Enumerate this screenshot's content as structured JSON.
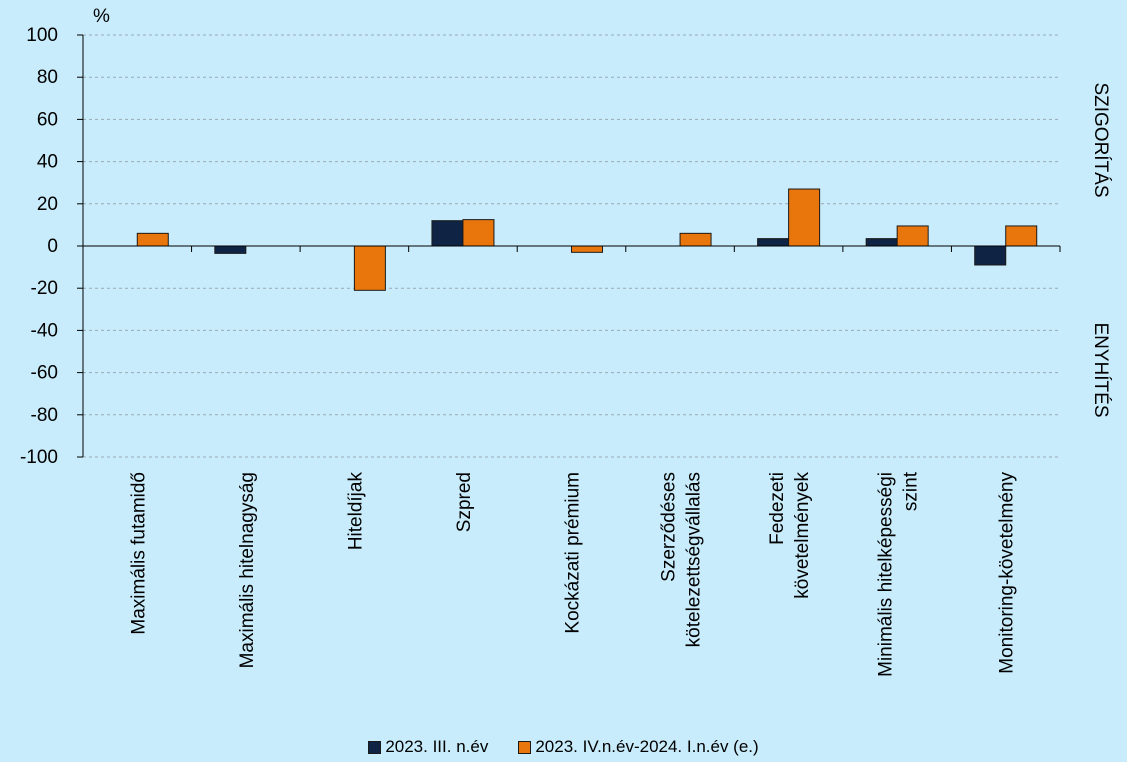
{
  "chart_data": {
    "type": "bar",
    "unit_label": "%",
    "ylim": [
      -100,
      100
    ],
    "ytick_step": 20,
    "grid": "dashed horizontal",
    "right_labels": {
      "top": "SZIGORÍTÁS",
      "bottom": "ENYHÍTÉS"
    },
    "categories": [
      [
        "Maximális futamidő"
      ],
      [
        "Maximális hitelnagyság"
      ],
      [
        "Hiteldíjak"
      ],
      [
        "Szpred"
      ],
      [
        "Kockázati prémium"
      ],
      [
        "Szerződéses",
        "kötelezettségvállalás"
      ],
      [
        "Fedezeti",
        "követelmények"
      ],
      [
        "Minimális hitelképességi",
        "szint"
      ],
      [
        "Monitoring-követelmény"
      ]
    ],
    "series": [
      {
        "name": "2023. III. n.év",
        "color": "#0f2345",
        "values": [
          0,
          -3.5,
          0,
          12,
          0,
          0,
          3.5,
          3.5,
          -9
        ]
      },
      {
        "name": "2023. IV.n.év-2024. I.n.év (e.)",
        "color": "#e8760c",
        "values": [
          6,
          0,
          -21,
          12.5,
          -3,
          6,
          27,
          9.5,
          9.5
        ]
      }
    ],
    "legend_position": "bottom"
  }
}
